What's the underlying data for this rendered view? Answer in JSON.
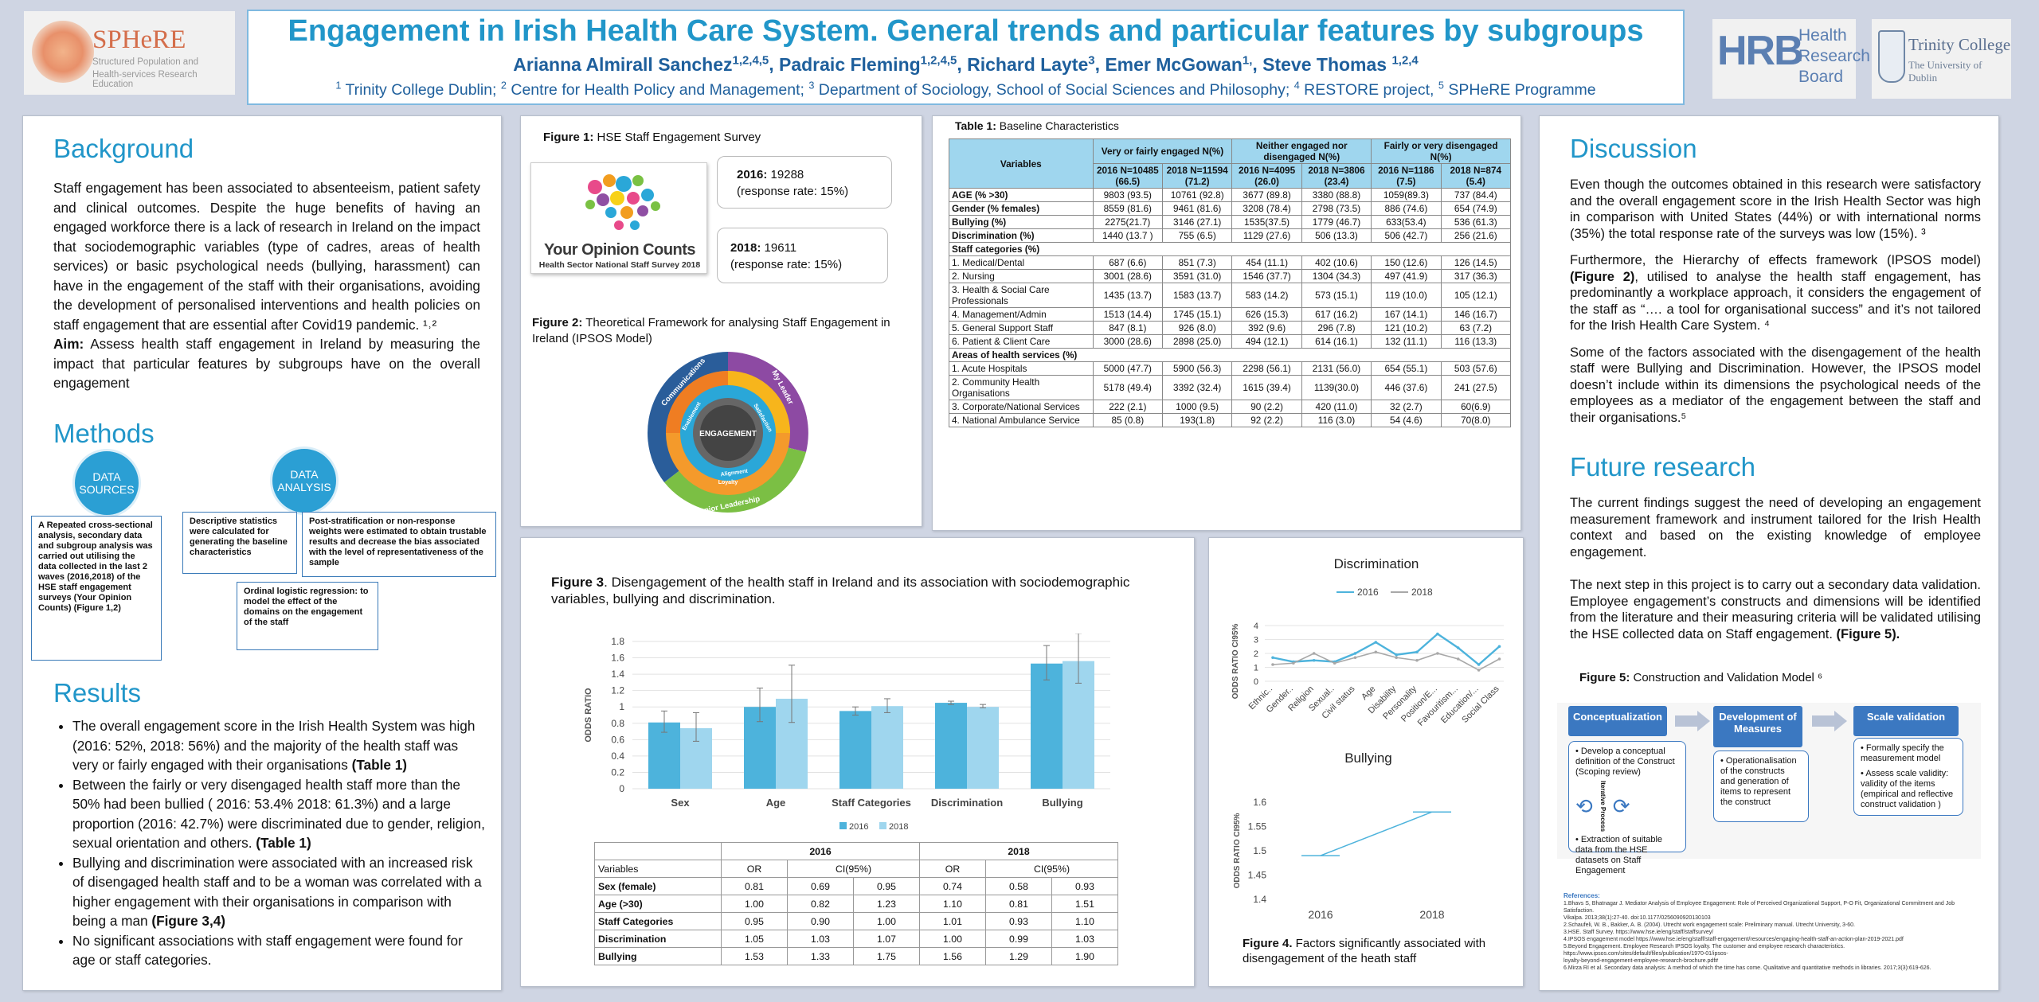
{
  "header": {
    "title": "Engagement in Irish Health Care System. General trends and particular features by subgroups",
    "authors": [
      {
        "name": "Arianna Almirall Sanchez",
        "sup": "1,2,4,5"
      },
      {
        "name": "Padraic Fleming",
        "sup": "1,2,4,5"
      },
      {
        "name": "Richard Layte",
        "sup": "3"
      },
      {
        "name": "Emer McGowan",
        "sup": "1,"
      },
      {
        "name": "Steve Thomas ",
        "sup": "1,2,4"
      }
    ],
    "affiliations": [
      {
        "sup": "1",
        "text": "Trinity College Dublin; "
      },
      {
        "sup": "2",
        "text": "Centre for Health Policy and Management; "
      },
      {
        "sup": "3",
        "text": "Department of Sociology, School of Social Sciences and Philosophy; "
      },
      {
        "sup": "4",
        "text": "RESTORE project, "
      },
      {
        "sup": "5",
        "text": "SPHeRE Programme"
      }
    ]
  },
  "logos": {
    "sphere": {
      "name": "SPHeRE",
      "tagline1": "Structured Population and",
      "tagline2": "Health-services Research Education"
    },
    "hrb": {
      "letters": "HRB",
      "line1": "Health",
      "line2": "Research",
      "line3": "Board"
    },
    "tcd": {
      "line1": "Trinity College",
      "line2": "The University of Dublin"
    }
  },
  "background": {
    "heading": "Background",
    "text": "Staff engagement has been associated to absenteeism, patient safety and clinical outcomes. Despite the huge benefits of having an engaged workforce there is a lack of research in Ireland on the impact that sociodemographic variables (type of cadres, areas of health services) or basic psychological needs (bullying, harassment) can have in the engagement of the staff with their organisations, avoiding the development of personalised interventions and health policies on staff engagement that are essential after Covid19 pandemic. ¹˒²",
    "aim_label": "Aim:",
    "aim_text": " Assess health staff engagement in Ireland by measuring the impact that particular features by subgroups have on the overall engagement"
  },
  "methods": {
    "heading": "Methods",
    "circle1": "DATA SOURCES",
    "circle2": "DATA ANALYSIS",
    "box_sources": "A  Repeated cross-sectional analysis, secondary data and subgroup analysis was carried out utilising the data collected in the last 2 waves (2016,2018) of the HSE staff engagement surveys (Your Opinion Counts) (Figure 1,2)",
    "box_descriptive": "Descriptive statistics were  calculated for generating the baseline characteristics",
    "box_post": "Post-stratification or non-response weights were estimated to obtain trustable results and decrease the bias associated with the level of representativeness of the sample",
    "box_ordinal": "Ordinal logistic regression: to model the effect of the domains on the engagement of the staff"
  },
  "results": {
    "heading": "Results",
    "bullets": [
      {
        "text": "The overall engagement score in the Irish Health System was high (2016: 52%, 2018: 56%) and the majority of the health staff was very or fairly engaged with their organisations ",
        "bold": "(Table 1)"
      },
      {
        "text": "Between the fairly or very disengaged health staff more than the 50% had been bullied ( 2016: 53.4% 2018: 61.3%) and a large proportion (2016: 42.7%) were discriminated due to gender, religion, sexual orientation and others. ",
        "bold": "(Table 1)"
      },
      {
        "text": "Bullying and discrimination were associated with an increased risk of disengaged health staff and to be a woman was correlated with a higher engagement with their organisations in comparison with being a man  ",
        "bold": "(Figure 3,4)"
      },
      {
        "text": "No significant associations with staff engagement were found for age or staff categories.",
        "bold": ""
      }
    ]
  },
  "figure1": {
    "caption_label": "Figure 1:",
    "caption_text": " HSE Staff Engagement Survey",
    "logo_text1": "Your Opinion Counts",
    "logo_text2": "Health Sector National Staff Survey 2018",
    "box2016_year": "2016:",
    "box2016_value": " 19288",
    "box2016_rate": "(response rate: 15%)",
    "box2018_year": "2018:",
    "box2018_value": " 19611",
    "box2018_rate": "(response rate: 15%)"
  },
  "figure2": {
    "caption_label": "Figure 2:",
    "caption_text": " Theoretical Framework for analysing Staff Engagement in Ireland  (IPSOS Model)",
    "center": "ENGAGEMENT",
    "ring_labels": [
      "Communications",
      "My Leader",
      "Senior Leadership",
      "Loyalty",
      "Alignment",
      "Enablement",
      "Satisfaction"
    ]
  },
  "table1": {
    "caption_label": "Table 1:",
    "caption_text": " Baseline Characteristics",
    "col_variables": "Variables",
    "group_headers": [
      "Very or fairly engaged N(%)",
      "Neither engaged nor disengaged  N(%)",
      "Fairly or very disengaged N(%)"
    ],
    "sub_headers": [
      "2016 N=10485 (66.5)",
      "2018 N=11594 (71.2)",
      "2016 N=4095 (26.0)",
      "2018 N=3806 (23.4)",
      "2016 N=1186 (7.5)",
      "2018 N=874 (5.4)"
    ],
    "rows": [
      {
        "label": "AGE (% >30)",
        "bold": true,
        "cells": [
          "9803 (93.5)",
          "10761 (92.8)",
          "3677 (89.8)",
          "3380 (88.8)",
          "1059(89.3)",
          "737 (84.4)"
        ]
      },
      {
        "label": "Gender (% females)",
        "bold": true,
        "cells": [
          "8559 (81.6)",
          "9461 (81.6)",
          "3208 (78.4)",
          "2798 (73.5)",
          "886 (74.6)",
          "654 (74.9)"
        ]
      },
      {
        "label": "Bullying (%)",
        "bold": true,
        "cells": [
          "2275(21.7)",
          "3146 (27.1)",
          "1535(37.5)",
          "1779 (46.7)",
          "633(53.4)",
          "536 (61.3)"
        ]
      },
      {
        "label": "Discrimination (%)",
        "bold": true,
        "cells": [
          "1440 (13.7 )",
          "755 (6.5)",
          "1129 (27.6)",
          "506 (13.3)",
          "506 (42.7)",
          "256 (21.6)"
        ]
      },
      {
        "label": "Staff categories (%)",
        "bold": true,
        "section": true,
        "cells": []
      },
      {
        "label": "1. Medical/Dental",
        "cells": [
          "687 (6.6)",
          "851 (7.3)",
          "454 (11.1)",
          "402 (10.6)",
          "150 (12.6)",
          "126 (14.5)"
        ]
      },
      {
        "label": "2. Nursing",
        "cells": [
          "3001 (28.6)",
          "3591 (31.0)",
          "1546 (37.7)",
          "1304 (34.3)",
          "497 (41.9)",
          "317 (36.3)"
        ]
      },
      {
        "label": "3. Health & Social Care Professionals",
        "cells": [
          "1435 (13.7)",
          "1583 (13.7)",
          "583 (14.2)",
          "573 (15.1)",
          "119 (10.0)",
          "105 (12.1)"
        ]
      },
      {
        "label": "4. Management/Admin",
        "cells": [
          "1513 (14.4)",
          "1745 (15.1)",
          "626 (15.3)",
          "617 (16.2)",
          "167 (14.1)",
          "146 (16.7)"
        ]
      },
      {
        "label": "5. General Support Staff",
        "cells": [
          "847 (8.1)",
          "926 (8.0)",
          "392 (9.6)",
          "296 (7.8)",
          "121 (10.2)",
          "63 (7.2)"
        ]
      },
      {
        "label": "6. Patient & Client Care",
        "cells": [
          "3000 (28.6)",
          "2898 (25.0)",
          "494 (12.1)",
          "614 (16.1)",
          "132 (11.1)",
          "116 (13.3)"
        ]
      },
      {
        "label": "Areas of health services (%)",
        "bold": true,
        "section": true,
        "cells": []
      },
      {
        "label": "1. Acute Hospitals",
        "cells": [
          "5000 (47.7)",
          "5900 (56.3)",
          "2298 (56.1)",
          "2131 (56.0)",
          "654 (55.1)",
          "503 (57.6)"
        ]
      },
      {
        "label": "2. Community Health Organisations",
        "cells": [
          "5178 (49.4)",
          "3392 (32.4)",
          "1615 (39.4)",
          "1139(30.0)",
          "446 (37.6)",
          "241 (27.5)"
        ]
      },
      {
        "label": "3. Corporate/National Services",
        "cells": [
          "222 (2.1)",
          "1000 (9.5)",
          "90 (2.2)",
          "420 (11.0)",
          "32 (2.7)",
          "60(6.9)"
        ]
      },
      {
        "label": "4. National Ambulance Service",
        "cells": [
          "85 (0.8)",
          "193(1.8)",
          "92 (2.2)",
          "116 (3.0)",
          "54 (4.6)",
          "70(8.0)"
        ]
      }
    ]
  },
  "figure3": {
    "caption_label": "Figure 3",
    "caption_text": ". Disengagement of the health staff in Ireland and its association with sociodemographic variables, bullying and discrimination.",
    "table_header_years": [
      "2016",
      "2018"
    ],
    "table_sub": [
      "Variables",
      "OR",
      "CI(95%)",
      "OR",
      "CI(95%)"
    ],
    "table_rows": [
      {
        "var": "Sex (female)",
        "vals": [
          "0.81",
          "0.69",
          "0.95",
          "0.74",
          "0.58",
          "0.93"
        ]
      },
      {
        "var": "Age (>30)",
        "vals": [
          "1.00",
          "0.82",
          "1.23",
          "1.10",
          "0.81",
          "1.51"
        ]
      },
      {
        "var": "Staff Categories",
        "vals": [
          "0.95",
          "0.90",
          "1.00",
          "1.01",
          "0.93",
          "1.10"
        ]
      },
      {
        "var": "Discrimination",
        "vals": [
          "1.05",
          "1.03",
          "1.07",
          "1.00",
          "0.99",
          "1.03"
        ]
      },
      {
        "var": "Bullying",
        "vals": [
          "1.53",
          "1.33",
          "1.75",
          "1.56",
          "1.29",
          "1.90"
        ]
      }
    ]
  },
  "figure4": {
    "caption_label": "Figure 4.",
    "caption_text": " Factors significantly associated with disengagement of the heath staff"
  },
  "chart_data": [
    {
      "type": "bar",
      "categories": [
        "Sex",
        "Age",
        "Staff Categories",
        "Discrimination",
        "Bullying"
      ],
      "series": [
        {
          "name": "2016",
          "values": [
            0.81,
            1.0,
            0.95,
            1.05,
            1.53
          ],
          "ci_low": [
            0.69,
            0.82,
            0.9,
            1.03,
            1.33
          ],
          "ci_high": [
            0.95,
            1.23,
            1.0,
            1.07,
            1.75
          ],
          "color": "#4db3dc"
        },
        {
          "name": "2018",
          "values": [
            0.74,
            1.1,
            1.01,
            1.0,
            1.56
          ],
          "ci_low": [
            0.58,
            0.81,
            0.93,
            0.99,
            1.29
          ],
          "ci_high": [
            0.93,
            1.51,
            1.1,
            1.03,
            1.9
          ],
          "color": "#9fd6ee"
        }
      ],
      "ylabel": "ODDS RATIO",
      "yticks": [
        "0",
        "0.2",
        "0.4",
        "0.6",
        "0.8",
        "1",
        "1.2",
        "1.4",
        "1.6",
        "1.8"
      ],
      "ylim": [
        0,
        1.8
      ],
      "legend": "bottom"
    },
    {
      "type": "line",
      "title": "Discrimination",
      "categories": [
        "Ethnic..",
        "Gender..",
        "Religion",
        "Sexual..",
        "Civil status",
        "Age",
        "Disability",
        "Personality",
        "Position/E...",
        "Favouritism...",
        "Education/...",
        "Social Class"
      ],
      "series": [
        {
          "name": "2016",
          "values": [
            1.7,
            1.4,
            1.5,
            1.4,
            2.0,
            2.8,
            1.9,
            2.1,
            3.4,
            2.4,
            1.2,
            2.5
          ],
          "color": "#4db3dc"
        },
        {
          "name": "2018",
          "values": [
            1.2,
            1.3,
            2.0,
            1.3,
            1.7,
            2.1,
            1.7,
            1.5,
            2.0,
            1.6,
            0.8,
            1.6
          ],
          "color": "#a8a8a8"
        }
      ],
      "ylabel": "ODDS RATIO CI95%",
      "yticks": [
        "0",
        "1",
        "2",
        "3",
        "4"
      ],
      "ylim": [
        0,
        4
      ],
      "legend": "top"
    },
    {
      "type": "line",
      "title": "Bullying",
      "categories": [
        "2016",
        "2018"
      ],
      "series": [
        {
          "name": "Bullying",
          "values": [
            1.49,
            1.58
          ],
          "color": "#4db3dc"
        }
      ],
      "ylabel": "ODDS RATIO CI95%",
      "yticks": [
        "1.4",
        "1.45",
        "1.5",
        "1.55",
        "1.6"
      ],
      "ylim": [
        1.4,
        1.6
      ]
    }
  ],
  "discussion": {
    "heading": "Discussion",
    "p1": "Even though the outcomes obtained in this research were satisfactory and the overall engagement score in the Irish Health Sector was high in comparison with United States (44%) or with international norms (35%) the total response rate of the surveys was low (15%). ³",
    "p2_a": "Furthermore, the Hierarchy of effects framework (IPSOS model) ",
    "p2_b": "(Figure 2)",
    "p2_c": ", utilised to analyse the health staff engagement, has predominantly a workplace approach, it considers the engagement of the staff as “…. a tool for organisational success” and it’s not tailored for the Irish Health Care System. ⁴",
    "p3": "Some of the factors associated with the disengagement of the health staff were Bullying and Discrimination. However, the IPSOS model doesn’t include within its dimensions the psychological needs of the employees as a mediator of the engagement between the staff and their organisations.⁵"
  },
  "future": {
    "heading": "Future research",
    "p1": "The current findings suggest the need of developing an engagement measurement framework and instrument tailored for the Irish Health context and based on the existing knowledge of employee engagement.",
    "p2": "The next step in this project is to carry out a secondary data validation. Employee engagement’s constructs and dimensions will be identified from the literature and their measuring criteria will be validated utilising the HSE collected data on Staff engagement. ",
    "p2_bold": "(Figure 5).",
    "fig5_label": "Figure 5:",
    "fig5_text": " Construction and Validation Model ⁶",
    "stages": [
      {
        "title": "Conceptualization",
        "items": [
          "Develop a conceptual definition of the Construct (Scoping review)",
          "Extraction of suitable data from the HSE datasets on Staff Engagement"
        ],
        "side": "Iterative Process"
      },
      {
        "title": "Development of Measures",
        "items": [
          "Operationalisation of the constructs and generation of  items to represent the construct"
        ]
      },
      {
        "title": "Scale validation",
        "items": [
          "Formally specify the measurement model",
          "Assess scale validity: validity of the items (empirical and reflective construct validation )"
        ]
      }
    ]
  },
  "references": {
    "label": "References:",
    "items": [
      "1.Bhavs S, Bhatnagar J. Mediator Analysis of Employee Engagement: Role of Perceived Organizational Support, P-O Fit, Organizational Commitment and Job Satisfaction.",
      "Vikalpa. 2013;38(1):27-40. doi:10.1177/0256090920130103",
      "2.Schaufeli, W. B., Bakker, A. B. (2004). Utrecht work engagement scale: Preliminary manual. Utrecht University, 3-60.",
      "3.HSE. Staff Survey. https://www.hse.ie/eng/staff/staffsurvey/",
      "4.IPSOS engagement model https://www.hse.ie/eng/staff/staff-engagement/resources/engaging-health-staff-an-action-plan-2019-2021.pdf",
      "5.Beyond Engagement. Employee Research IPSOS loyalty. The customer and employee research characteristics. https://www.ipsos.com/sites/default/files/publication/1970-01/ipsos-",
      "loyalty-beyond-engagement-employee-research-brochure.pdf#",
      "6.Mirza RI et al. Secondary data analysis: A method of which the time has come. Qualitative and quantitative methods in libraries. 2017;3(3):619-626."
    ]
  }
}
